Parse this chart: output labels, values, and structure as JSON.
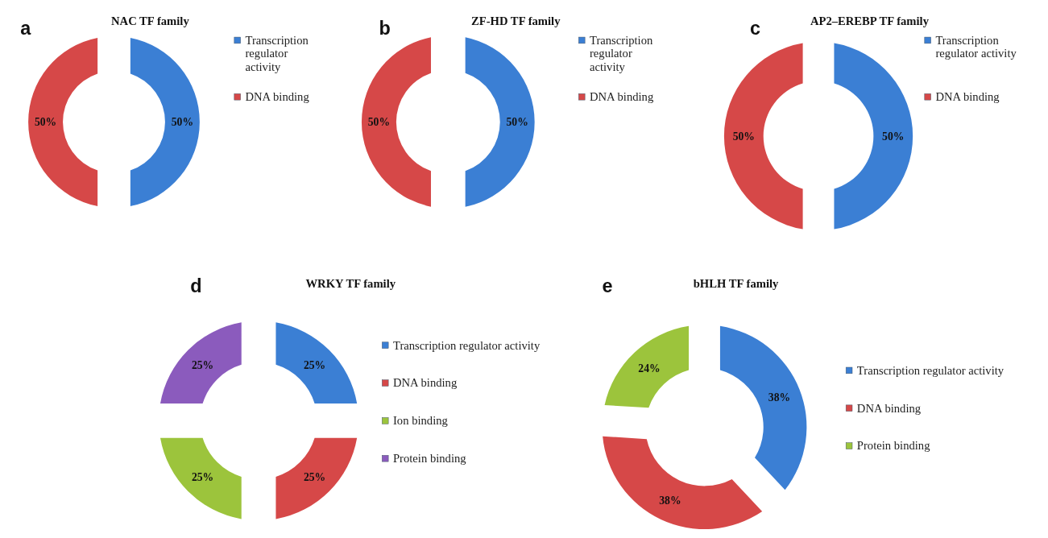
{
  "chart_data": [
    {
      "type": "donut",
      "title": "NAC TF family",
      "annotations": [
        "a"
      ],
      "categories": [
        "Transcription regulator activity",
        "DNA binding"
      ],
      "values": [
        50,
        50
      ],
      "colors": [
        "#3b7fd4",
        "#d64848"
      ],
      "value_labels": [
        "50%",
        "50%"
      ],
      "legend": "right"
    },
    {
      "type": "donut",
      "title": "ZF-HD TF family",
      "annotations": [
        "b"
      ],
      "categories": [
        "Transcription regulator activity",
        "DNA binding"
      ],
      "values": [
        50,
        50
      ],
      "colors": [
        "#3b7fd4",
        "#d64848"
      ],
      "value_labels": [
        "50%",
        "50%"
      ],
      "legend": "right"
    },
    {
      "type": "donut",
      "title": "AP2–EREBP TF family",
      "annotations": [
        "c"
      ],
      "categories": [
        "Transcription regulator activity",
        "DNA binding"
      ],
      "values": [
        50,
        50
      ],
      "colors": [
        "#3b7fd4",
        "#d64848"
      ],
      "value_labels": [
        "50%",
        "50%"
      ],
      "legend": "right"
    },
    {
      "type": "donut",
      "title": "WRKY TF family",
      "annotations": [
        "d"
      ],
      "categories": [
        "Transcription regulator activity",
        "DNA binding",
        "Ion binding",
        "Protein binding"
      ],
      "values": [
        25,
        25,
        25,
        25
      ],
      "colors": [
        "#3b7fd4",
        "#d64848",
        "#9cc43c",
        "#8b5bbd"
      ],
      "value_labels": [
        "25%",
        "25%",
        "25%",
        "25%"
      ],
      "legend": "right"
    },
    {
      "type": "donut",
      "title": "bHLH TF family",
      "annotations": [
        "e"
      ],
      "categories": [
        "Transcription regulator activity",
        "DNA binding",
        "Protein binding"
      ],
      "values": [
        38,
        38,
        24
      ],
      "colors": [
        "#3b7fd4",
        "#d64848",
        "#9cc43c"
      ],
      "value_labels": [
        "38%",
        "38%",
        "24%"
      ],
      "legend": "right"
    }
  ]
}
